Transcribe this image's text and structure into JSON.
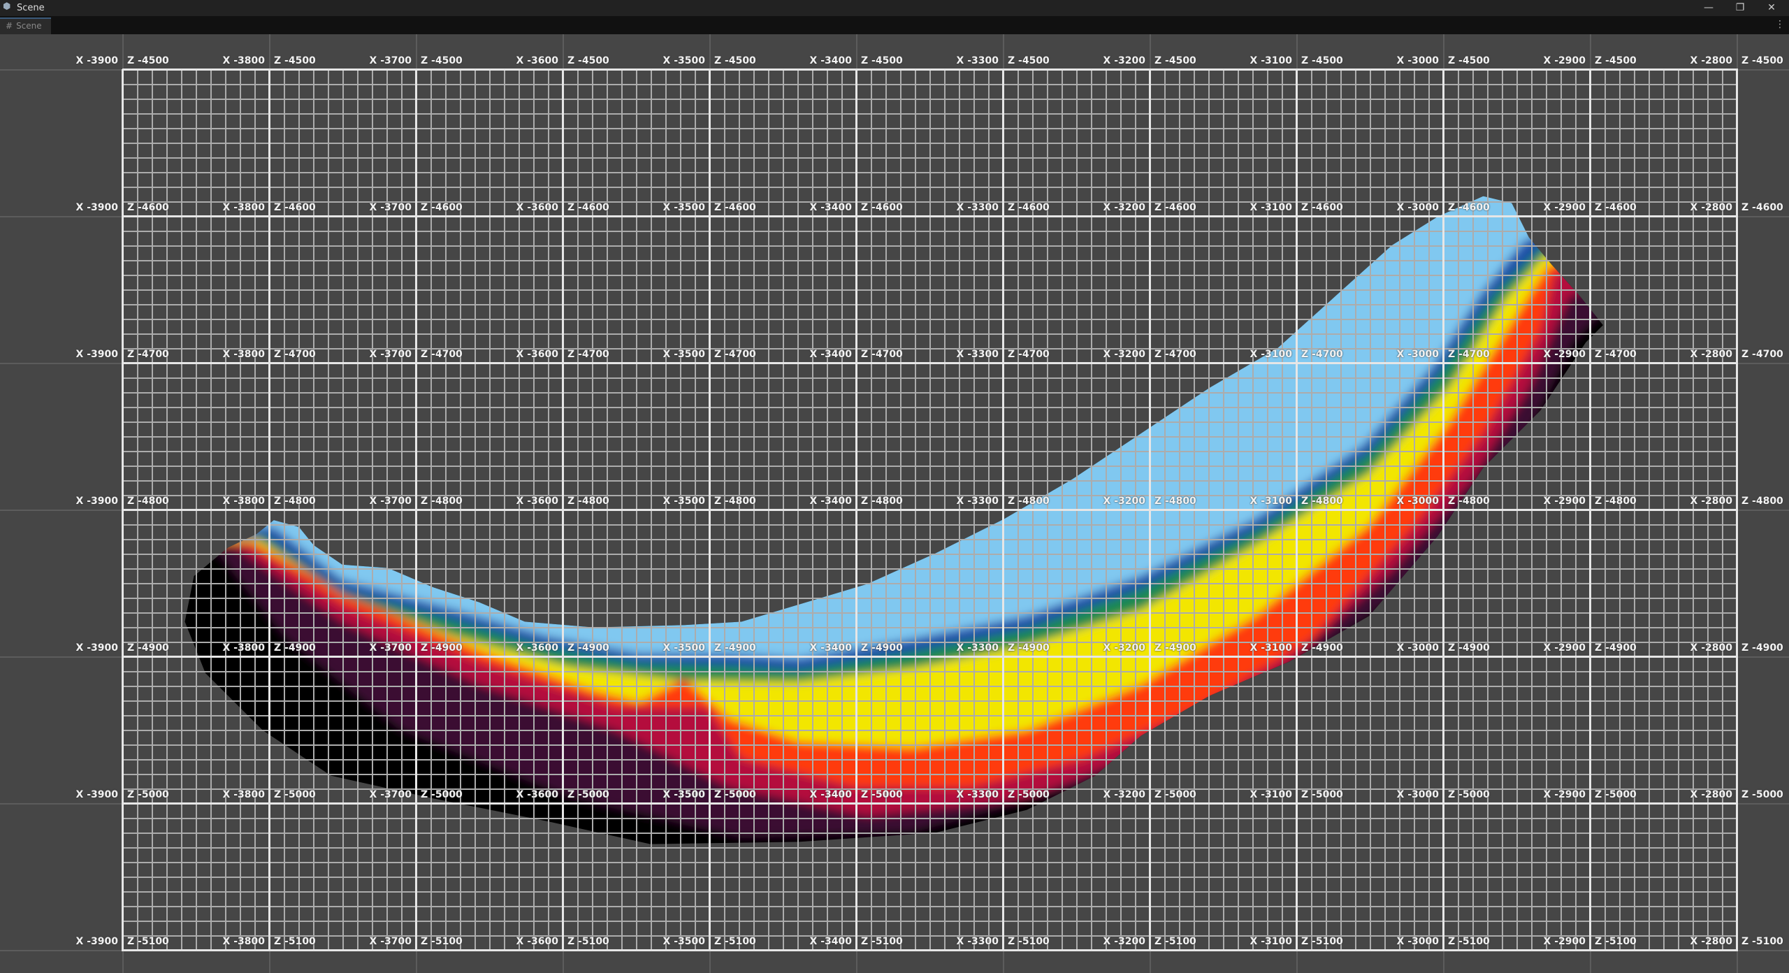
{
  "window": {
    "title": "Scene",
    "icon": "unity-cube-icon",
    "controls": [
      "minimize-icon",
      "restore-icon",
      "close-icon"
    ]
  },
  "tab": {
    "label": "Scene",
    "icon": "grid-hash-icon"
  },
  "grid": {
    "x_labels": [
      "X -3900",
      "X -3800",
      "X -3700",
      "X -3600",
      "X -3500",
      "X -3400",
      "X -3300",
      "X -3200",
      "X -3100",
      "X -3000",
      "X -2900",
      "X -2800"
    ],
    "z_labels": [
      "Z -4500",
      "Z -4600",
      "Z -4700",
      "Z -4800",
      "Z -4900",
      "Z -5000",
      "Z -5100"
    ]
  },
  "colors": {
    "background": "#464646",
    "height_ramp": [
      "#000000",
      "#3a0a32",
      "#b4103c",
      "#ff3a10",
      "#f2e600",
      "#1e8a50",
      "#1a50a8",
      "#80c8f0"
    ]
  }
}
